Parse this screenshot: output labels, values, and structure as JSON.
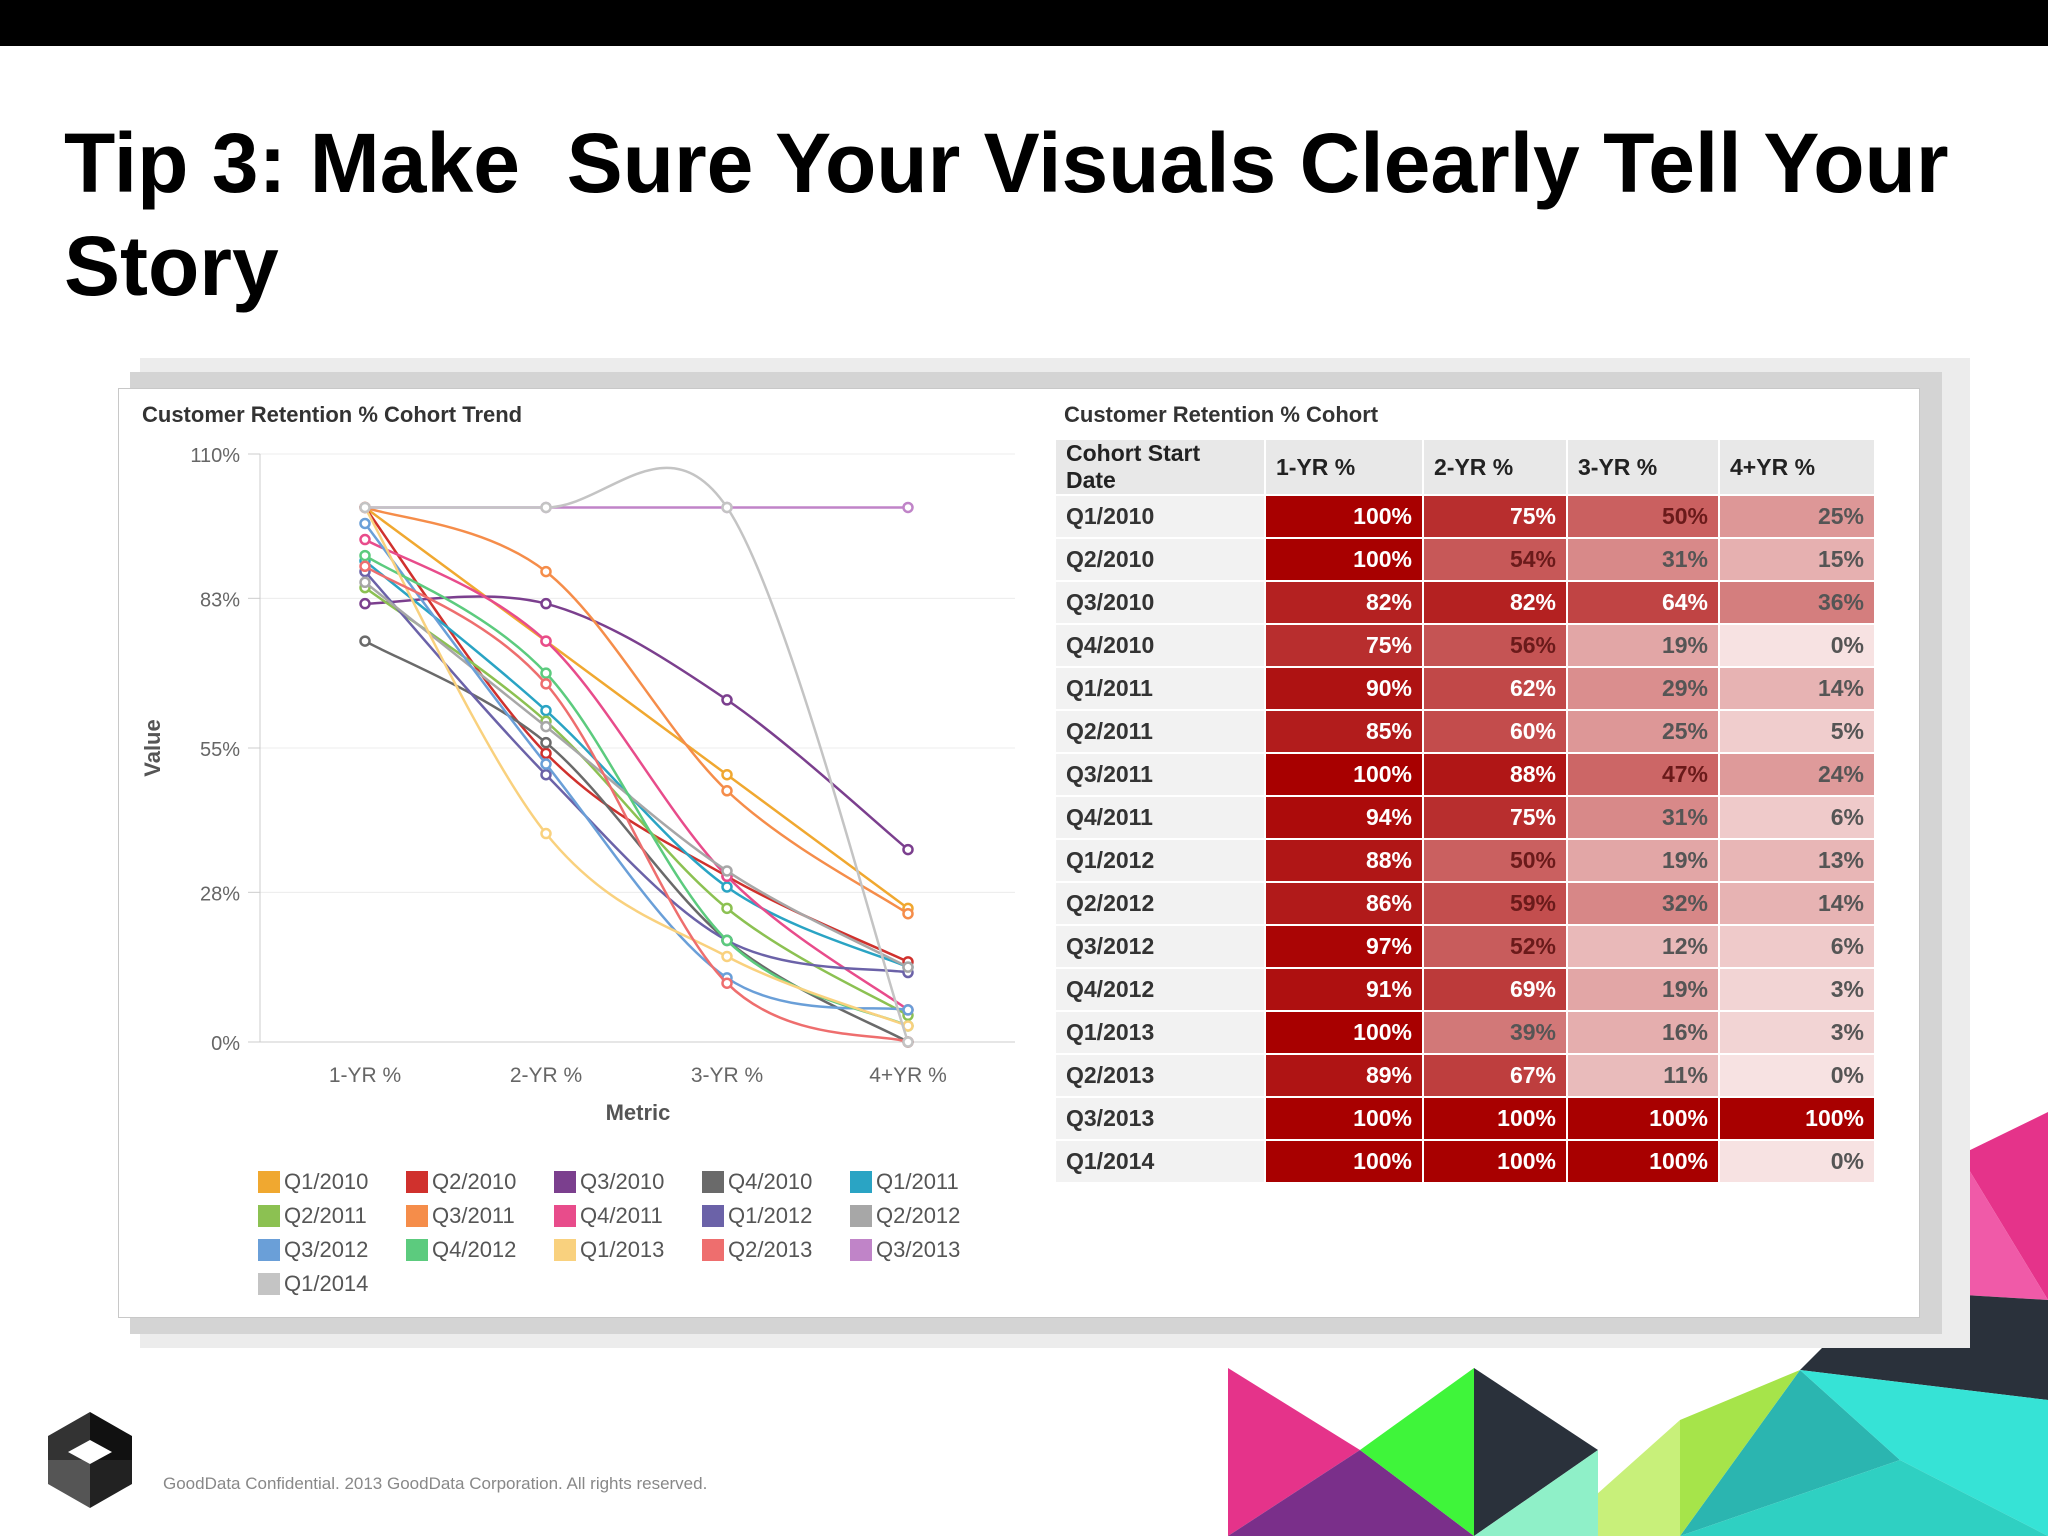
{
  "slide": {
    "title": "Tip 3: Make  Sure Your Visuals Clearly Tell Your Story",
    "footer": "GoodData Confidential. 2013 GoodData Corporation. All rights reserved.",
    "logo_icon": "goodData-g-logo-icon",
    "accent_colors": [
      "#e5338a",
      "#2a9bd6",
      "#3ff53a",
      "#2a313b",
      "#36e3d6",
      "#a6e44a",
      "#6f2d8c"
    ]
  },
  "chart_data": [
    {
      "type": "line",
      "title": "Customer Retention % Cohort Trend",
      "xlabel": "Metric",
      "ylabel": "Value",
      "categories": [
        "1-YR %",
        "2-YR %",
        "3-YR %",
        "4+YR %"
      ],
      "yticks": [
        "110%",
        "83%",
        "55%",
        "28%",
        "0%"
      ],
      "ytick_values": [
        110,
        83,
        55,
        28,
        0
      ],
      "ylim": [
        0,
        110
      ],
      "legend_position": "bottom",
      "grid": true,
      "series": [
        {
          "name": "Q1/2010",
          "color": "#f0a830",
          "values": [
            100,
            75,
            50,
            25
          ]
        },
        {
          "name": "Q2/2010",
          "color": "#d0312d",
          "values": [
            100,
            54,
            31,
            15
          ]
        },
        {
          "name": "Q3/2010",
          "color": "#7b3f8e",
          "values": [
            82,
            82,
            64,
            36
          ]
        },
        {
          "name": "Q4/2010",
          "color": "#6a6a6a",
          "values": [
            75,
            56,
            19,
            0
          ]
        },
        {
          "name": "Q1/2011",
          "color": "#2aa4c4",
          "values": [
            90,
            62,
            29,
            14
          ]
        },
        {
          "name": "Q2/2011",
          "color": "#8cc152",
          "values": [
            85,
            60,
            25,
            5
          ]
        },
        {
          "name": "Q3/2011",
          "color": "#f58d4a",
          "values": [
            100,
            88,
            47,
            24
          ]
        },
        {
          "name": "Q4/2011",
          "color": "#e84c8b",
          "values": [
            94,
            75,
            31,
            6
          ]
        },
        {
          "name": "Q1/2012",
          "color": "#6b62a8",
          "values": [
            88,
            50,
            19,
            13
          ]
        },
        {
          "name": "Q2/2012",
          "color": "#a7a7a7",
          "values": [
            86,
            59,
            32,
            14
          ]
        },
        {
          "name": "Q3/2012",
          "color": "#6a9fd8",
          "values": [
            97,
            52,
            12,
            6
          ]
        },
        {
          "name": "Q4/2012",
          "color": "#5ccb7e",
          "values": [
            91,
            69,
            19,
            3
          ]
        },
        {
          "name": "Q1/2013",
          "color": "#f9d17e",
          "values": [
            100,
            39,
            16,
            3
          ]
        },
        {
          "name": "Q2/2013",
          "color": "#ee6e6e",
          "values": [
            89,
            67,
            11,
            0
          ]
        },
        {
          "name": "Q3/2013",
          "color": "#c084c8",
          "values": [
            100,
            100,
            100,
            100
          ]
        },
        {
          "name": "Q1/2014",
          "color": "#c4c4c4",
          "values": [
            100,
            100,
            100,
            0
          ]
        }
      ]
    },
    {
      "type": "table",
      "title": "Customer Retention % Cohort",
      "columns": [
        "Cohort Start Date",
        "1-YR %",
        "2-YR %",
        "3-YR %",
        "4+YR %"
      ],
      "heat_colors": {
        "high": "#a80000",
        "low": "#f7e2e2"
      },
      "rows": [
        {
          "date": "Q1/2010",
          "cells": [
            {
              "v": 100,
              "t": "100%"
            },
            {
              "v": 75,
              "t": "75%"
            },
            {
              "v": 50,
              "t": "50%"
            },
            {
              "v": 25,
              "t": "25%"
            }
          ]
        },
        {
          "date": "Q2/2010",
          "cells": [
            {
              "v": 100,
              "t": "100%"
            },
            {
              "v": 54,
              "t": "54%"
            },
            {
              "v": 31,
              "t": "31%"
            },
            {
              "v": 15,
              "t": "15%"
            }
          ]
        },
        {
          "date": "Q3/2010",
          "cells": [
            {
              "v": 82,
              "t": "82%"
            },
            {
              "v": 82,
              "t": "82%"
            },
            {
              "v": 64,
              "t": "64%"
            },
            {
              "v": 36,
              "t": "36%"
            }
          ]
        },
        {
          "date": "Q4/2010",
          "cells": [
            {
              "v": 75,
              "t": "75%"
            },
            {
              "v": 56,
              "t": "56%"
            },
            {
              "v": 19,
              "t": "19%"
            },
            {
              "v": 0,
              "t": "0%"
            }
          ]
        },
        {
          "date": "Q1/2011",
          "cells": [
            {
              "v": 90,
              "t": "90%"
            },
            {
              "v": 62,
              "t": "62%"
            },
            {
              "v": 29,
              "t": "29%"
            },
            {
              "v": 14,
              "t": "14%"
            }
          ]
        },
        {
          "date": "Q2/2011",
          "cells": [
            {
              "v": 85,
              "t": "85%"
            },
            {
              "v": 60,
              "t": "60%"
            },
            {
              "v": 25,
              "t": "25%"
            },
            {
              "v": 5,
              "t": "5%"
            }
          ]
        },
        {
          "date": "Q3/2011",
          "cells": [
            {
              "v": 100,
              "t": "100%"
            },
            {
              "v": 88,
              "t": "88%"
            },
            {
              "v": 47,
              "t": "47%"
            },
            {
              "v": 24,
              "t": "24%"
            }
          ]
        },
        {
          "date": "Q4/2011",
          "cells": [
            {
              "v": 94,
              "t": "94%"
            },
            {
              "v": 75,
              "t": "75%"
            },
            {
              "v": 31,
              "t": "31%"
            },
            {
              "v": 6,
              "t": "6%"
            }
          ]
        },
        {
          "date": "Q1/2012",
          "cells": [
            {
              "v": 88,
              "t": "88%"
            },
            {
              "v": 50,
              "t": "50%"
            },
            {
              "v": 19,
              "t": "19%"
            },
            {
              "v": 13,
              "t": "13%"
            }
          ]
        },
        {
          "date": "Q2/2012",
          "cells": [
            {
              "v": 86,
              "t": "86%"
            },
            {
              "v": 59,
              "t": "59%"
            },
            {
              "v": 32,
              "t": "32%"
            },
            {
              "v": 14,
              "t": "14%"
            }
          ]
        },
        {
          "date": "Q3/2012",
          "cells": [
            {
              "v": 97,
              "t": "97%"
            },
            {
              "v": 52,
              "t": "52%"
            },
            {
              "v": 12,
              "t": "12%"
            },
            {
              "v": 6,
              "t": "6%"
            }
          ]
        },
        {
          "date": "Q4/2012",
          "cells": [
            {
              "v": 91,
              "t": "91%"
            },
            {
              "v": 69,
              "t": "69%"
            },
            {
              "v": 19,
              "t": "19%"
            },
            {
              "v": 3,
              "t": "3%"
            }
          ]
        },
        {
          "date": "Q1/2013",
          "cells": [
            {
              "v": 100,
              "t": "100%"
            },
            {
              "v": 39,
              "t": "39%"
            },
            {
              "v": 16,
              "t": "16%"
            },
            {
              "v": 3,
              "t": "3%"
            }
          ]
        },
        {
          "date": "Q2/2013",
          "cells": [
            {
              "v": 89,
              "t": "89%"
            },
            {
              "v": 67,
              "t": "67%"
            },
            {
              "v": 11,
              "t": "11%"
            },
            {
              "v": 0,
              "t": "0%"
            }
          ]
        },
        {
          "date": "Q3/2013",
          "cells": [
            {
              "v": 100,
              "t": "100%"
            },
            {
              "v": 100,
              "t": "100%"
            },
            {
              "v": 100,
              "t": "100%"
            },
            {
              "v": 100,
              "t": "100%"
            }
          ]
        },
        {
          "date": "Q1/2014",
          "cells": [
            {
              "v": 100,
              "t": "100%"
            },
            {
              "v": 100,
              "t": "100%"
            },
            {
              "v": 100,
              "t": "100%"
            },
            {
              "v": 0,
              "t": "0%"
            }
          ]
        }
      ]
    }
  ]
}
